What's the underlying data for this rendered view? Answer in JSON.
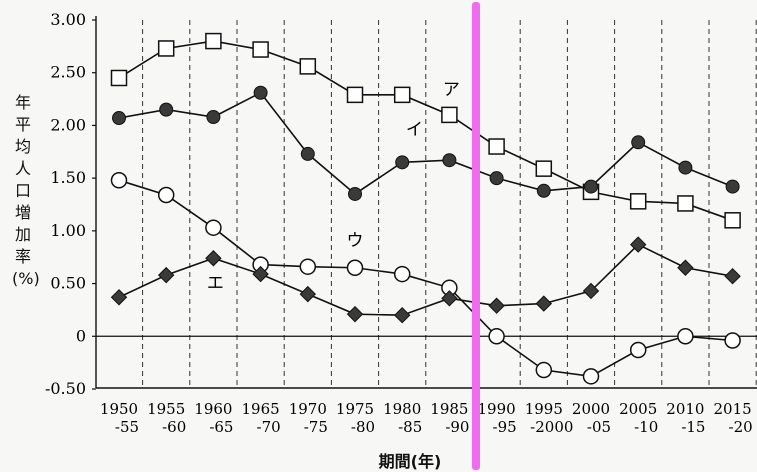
{
  "chart_data": {
    "type": "line",
    "ylabel": "年平均人口増加率(%)",
    "xlabel": "期間(年)",
    "ylim": [
      -0.5,
      3.0
    ],
    "y_ticks": [
      "3.00",
      "2.50",
      "2.00",
      "1.50",
      "1.00",
      "0.50",
      "0",
      "-0.50"
    ],
    "y_tick_values": [
      3.0,
      2.5,
      2.0,
      1.5,
      1.0,
      0.5,
      0,
      -0.5
    ],
    "categories": [
      [
        "1950",
        "-55"
      ],
      [
        "1955",
        "-60"
      ],
      [
        "1960",
        "-65"
      ],
      [
        "1965",
        "-70"
      ],
      [
        "1970",
        "-75"
      ],
      [
        "1975",
        "-80"
      ],
      [
        "1980",
        "-85"
      ],
      [
        "1985",
        "-90"
      ],
      [
        "1990",
        "-95"
      ],
      [
        "1995",
        "-2000"
      ],
      [
        "2000",
        "-05"
      ],
      [
        "2005",
        "-10"
      ],
      [
        "2010",
        "-15"
      ],
      [
        "2015",
        "-20"
      ]
    ],
    "series": [
      {
        "name": "ア",
        "marker": "square-open",
        "values": [
          2.45,
          2.73,
          2.8,
          2.72,
          2.56,
          2.29,
          2.29,
          2.1,
          1.8,
          1.59,
          1.37,
          1.28,
          1.26,
          1.1
        ]
      },
      {
        "name": "イ",
        "marker": "circle-filled",
        "values": [
          2.07,
          2.15,
          2.08,
          2.31,
          1.73,
          1.35,
          1.65,
          1.67,
          1.5,
          1.38,
          1.42,
          1.84,
          1.6,
          1.42
        ]
      },
      {
        "name": "ウ",
        "marker": "circle-open",
        "values": [
          1.48,
          1.34,
          1.03,
          0.68,
          0.66,
          0.65,
          0.59,
          0.46,
          0.0,
          -0.32,
          -0.38,
          -0.13,
          0.0,
          -0.04
        ]
      },
      {
        "name": "エ",
        "marker": "diamond-filled",
        "values": [
          0.37,
          0.58,
          0.74,
          0.59,
          0.4,
          0.21,
          0.2,
          0.36,
          0.29,
          0.31,
          0.43,
          0.87,
          0.65,
          0.57
        ]
      }
    ],
    "highlight_after_category": "1985-90",
    "highlight_color": "#f06bf0",
    "grid": "vertical-dashed"
  }
}
